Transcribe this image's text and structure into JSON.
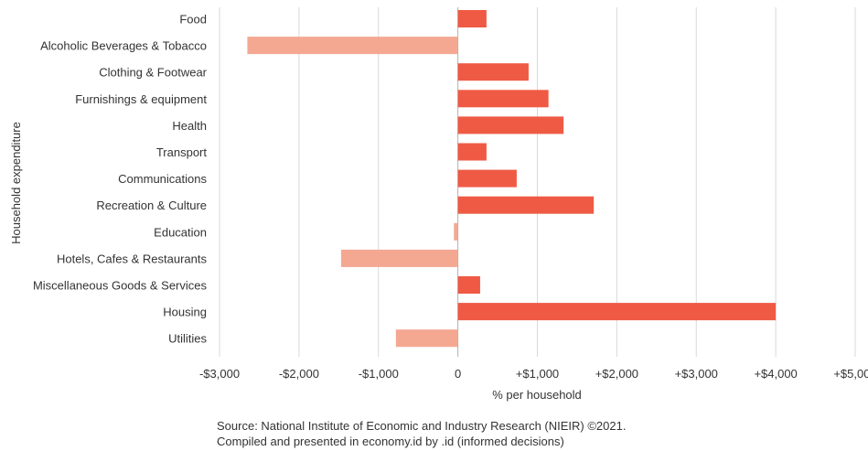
{
  "chart_data": {
    "type": "bar",
    "orientation": "horizontal",
    "categories": [
      "Food",
      "Alcoholic Beverages & Tobacco",
      "Clothing & Footwear",
      "Furnishings & equipment",
      "Health",
      "Transport",
      "Communications",
      "Recreation & Culture",
      "Education",
      "Hotels, Cafes & Restaurants",
      "Miscellaneous Goods & Services",
      "Housing",
      "Utilities"
    ],
    "values": [
      360,
      -2650,
      890,
      1140,
      1330,
      360,
      740,
      1710,
      -50,
      -1470,
      280,
      4000,
      -780
    ],
    "xlim": [
      -3000,
      5000
    ],
    "xticks": [
      -3000,
      -2000,
      -1000,
      0,
      1000,
      2000,
      3000,
      4000,
      5000
    ],
    "xtick_labels": [
      "-$3,000",
      "-$2,000",
      "-$1,000",
      "0",
      "+$1,000",
      "+$2,000",
      "+$3,000",
      "+$4,000",
      "+$5,000"
    ],
    "xlabel": "% per household",
    "ylabel": "Household expenditure",
    "grid": "vertical",
    "legend": "none",
    "colors": {
      "positive": "#ef5a45",
      "negative": "#f4a892",
      "grid": "#d9d9d9",
      "zero_line": "#b0b0b0"
    }
  },
  "source": {
    "line1": "Source: National Institute of Economic and Industry Research (NIEIR) ©2021.",
    "line2": "Compiled and presented in economy.id by .id (informed decisions)"
  }
}
